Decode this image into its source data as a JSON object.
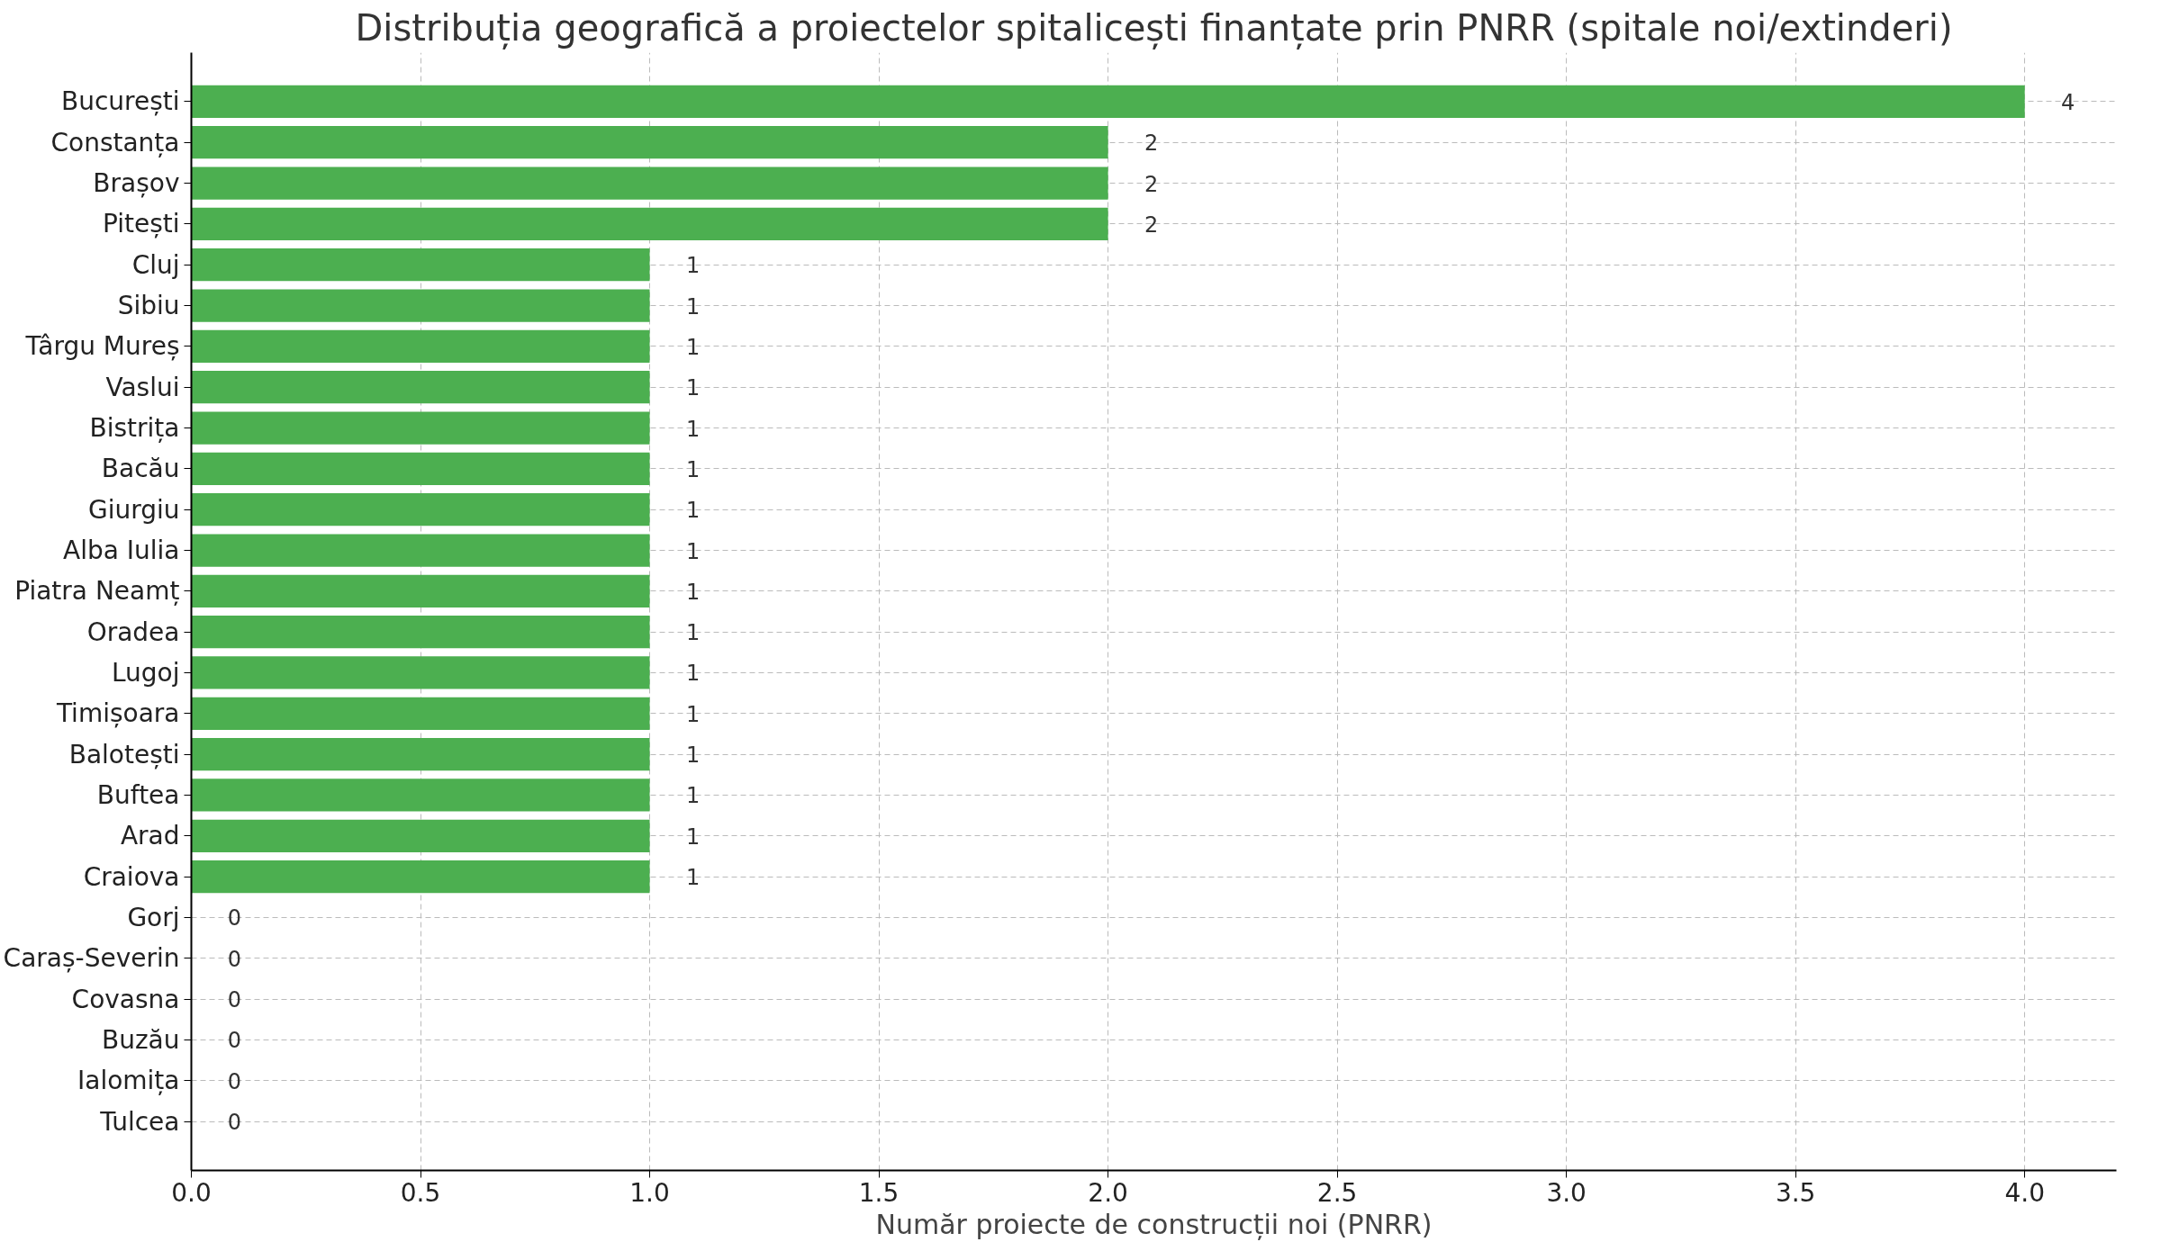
{
  "chart_data": {
    "type": "bar",
    "orientation": "horizontal",
    "title": "Distribuția geografică a proiectelor spitalicești finanțate prin PNRR (spitale noi/extinderi)",
    "xlabel": "Număr proiecte de construcții noi (PNRR)",
    "categories": [
      "București",
      "Constanța",
      "Brașov",
      "Pitești",
      "Cluj",
      "Sibiu",
      "Târgu Mureș",
      "Vaslui",
      "Bistrița",
      "Bacău",
      "Giurgiu",
      "Alba Iulia",
      "Piatra Neamț",
      "Oradea",
      "Lugoj",
      "Timișoara",
      "Balotești",
      "Buftea",
      "Arad",
      "Craiova",
      "Gorj",
      "Caraș-Severin",
      "Covasna",
      "Buzău",
      "Ialomița",
      "Tulcea"
    ],
    "values": [
      4,
      2,
      2,
      2,
      1,
      1,
      1,
      1,
      1,
      1,
      1,
      1,
      1,
      1,
      1,
      1,
      1,
      1,
      1,
      1,
      0,
      0,
      0,
      0,
      0,
      0
    ],
    "color": "#4caf50",
    "xlim": [
      0,
      4.2
    ],
    "xticks": [
      {
        "value": 0,
        "label": "0.0"
      },
      {
        "value": 0.5,
        "label": "0.5"
      },
      {
        "value": 1,
        "label": "1.0"
      },
      {
        "value": 1.5,
        "label": "1.5"
      },
      {
        "value": 2,
        "label": "2.0"
      },
      {
        "value": 2.5,
        "label": "2.5"
      },
      {
        "value": 3,
        "label": "3.0"
      },
      {
        "value": 3.5,
        "label": "3.5"
      },
      {
        "value": 4,
        "label": "4.0"
      }
    ],
    "grid": true,
    "data_labels": true
  }
}
